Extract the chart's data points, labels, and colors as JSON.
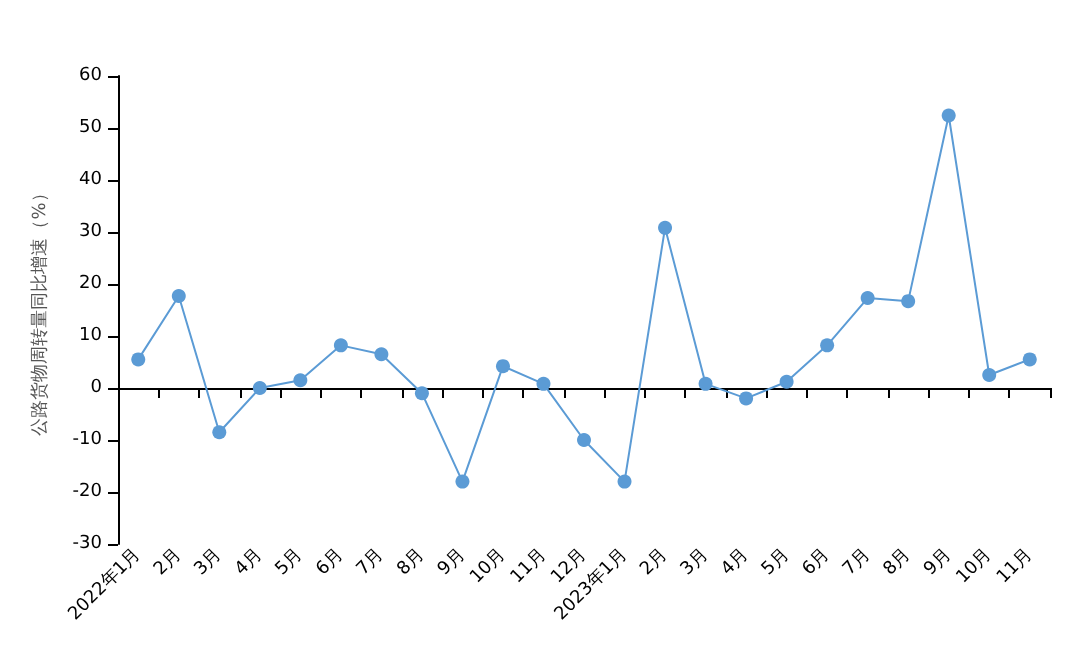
{
  "chart_data": {
    "type": "line",
    "ylabel": "公路货物周转量同比增速（%）",
    "categories": [
      "2022年1月",
      "2月",
      "3月",
      "4月",
      "5月",
      "6月",
      "7月",
      "8月",
      "9月",
      "10月",
      "11月",
      "12月",
      "2023年1月",
      "2月",
      "3月",
      "4月",
      "5月",
      "6月",
      "7月",
      "8月",
      "9月",
      "10月",
      "11月"
    ],
    "series": [
      {
        "color": "#5b9bd5",
        "values": [
          5.5,
          17.7,
          -8.5,
          0,
          1.5,
          8.2,
          6.5,
          -1,
          -18,
          4.2,
          0.8,
          -10,
          -18,
          30.8,
          0.8,
          -2,
          1.2,
          8.2,
          17.3,
          16.7,
          52.4,
          2.5,
          5.5
        ]
      }
    ],
    "ylim": [
      -30,
      60
    ],
    "yticks": [
      -30,
      -20,
      -10,
      0,
      10,
      20,
      30,
      40,
      50,
      60
    ],
    "marker": "circle",
    "line_style": "solid"
  }
}
